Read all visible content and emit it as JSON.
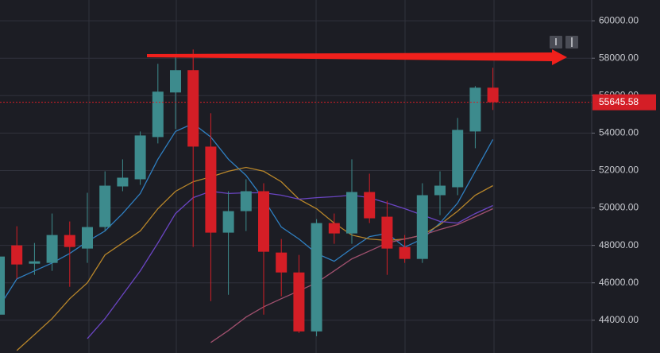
{
  "chart_data": {
    "type": "candlestick",
    "categories": [
      null,
      null,
      null,
      null,
      null,
      null,
      null,
      null,
      null,
      null,
      null,
      null,
      null,
      null,
      null,
      null,
      null,
      null,
      null,
      null,
      null,
      null,
      null,
      null,
      null,
      null,
      null,
      null,
      null
    ],
    "open": [
      44298,
      48000,
      47021,
      47064,
      48553,
      47830,
      48979,
      51149,
      51532,
      53787,
      56170,
      57362,
      53277,
      48681,
      49830,
      50894,
      47617,
      46553,
      43404,
      49191,
      48638,
      50851,
      49532,
      47915,
      47277,
      50681,
      51106,
      54085,
      56426
    ],
    "high": [
      48340,
      49021,
      48128,
      49702,
      49277,
      50809,
      51957,
      52596,
      54085,
      57702,
      58043,
      58468,
      55064,
      50894,
      51532,
      51319,
      48340,
      47489,
      49404,
      49702,
      52596,
      51830,
      50383,
      48553,
      51319,
      51957,
      54809,
      56511,
      57489
    ],
    "low": [
      43660,
      46213,
      46426,
      46638,
      45787,
      47064,
      48766,
      50894,
      51234,
      53447,
      54213,
      47915,
      45021,
      45362,
      48766,
      44298,
      45277,
      43319,
      43149,
      48085,
      48085,
      49191,
      46426,
      47064,
      47064,
      49617,
      50681,
      53191,
      55234
    ],
    "close": [
      47404,
      46979,
      47149,
      48553,
      47915,
      48979,
      51191,
      51617,
      53872,
      56213,
      57362,
      53277,
      48681,
      49830,
      50894,
      47660,
      46553,
      43404,
      49191,
      48638,
      50851,
      49447,
      47830,
      47277,
      50681,
      51191,
      54170,
      56426,
      55645.58
    ],
    "up_color": "#3d8b8d",
    "down_color": "#d41e26",
    "ma_lines": [
      {
        "color": "#2f7fc1",
        "values": [
          44720,
          46210,
          46640,
          47060,
          47570,
          48210,
          48770,
          49700,
          50770,
          52600,
          54090,
          54510,
          53790,
          52600,
          51740,
          50470,
          48980,
          48340,
          47570,
          47150,
          47830,
          48470,
          48640,
          47910,
          48340,
          49190,
          50260,
          51960,
          53660
        ]
      },
      {
        "color": "#b8862a",
        "values": [
          null,
          42380,
          43230,
          44090,
          45150,
          46000,
          47490,
          48130,
          48770,
          49960,
          50890,
          51400,
          51660,
          51960,
          52170,
          51960,
          51400,
          50470,
          49960,
          49190,
          48550,
          48340,
          48260,
          48340,
          48550,
          49110,
          49830,
          50680,
          51190
        ]
      },
      {
        "color": "#6a45c2",
        "values": [
          null,
          null,
          null,
          null,
          null,
          43020,
          44090,
          45360,
          46640,
          48130,
          49700,
          50550,
          50890,
          50770,
          50810,
          50810,
          50680,
          50470,
          50550,
          50600,
          50680,
          50550,
          50260,
          49960,
          49620,
          49280,
          49190,
          49700,
          50130
        ]
      },
      {
        "color": "#a0506e",
        "values": [
          null,
          null,
          null,
          null,
          null,
          null,
          null,
          null,
          null,
          null,
          null,
          null,
          42810,
          43450,
          44170,
          44720,
          45150,
          45570,
          46000,
          46640,
          47280,
          47700,
          48130,
          48340,
          48550,
          48850,
          49110,
          49530,
          49960
        ]
      }
    ],
    "current_price": 55645.58,
    "ylim": [
      42250,
      61110
    ],
    "yticks": [
      {
        "value": 44000,
        "label": "44000.00"
      },
      {
        "value": 46000,
        "label": "46000.00"
      },
      {
        "value": 48000,
        "label": "48000.00"
      },
      {
        "value": 50000,
        "label": "50000.00"
      },
      {
        "value": 52000,
        "label": "52000.00"
      },
      {
        "value": 54000,
        "label": "54000.00"
      },
      {
        "value": 56000,
        "label": "56000.00"
      },
      {
        "value": 58000,
        "label": "58000.00"
      },
      {
        "value": 60000,
        "label": "60000.00"
      }
    ],
    "grid": true
  }
}
